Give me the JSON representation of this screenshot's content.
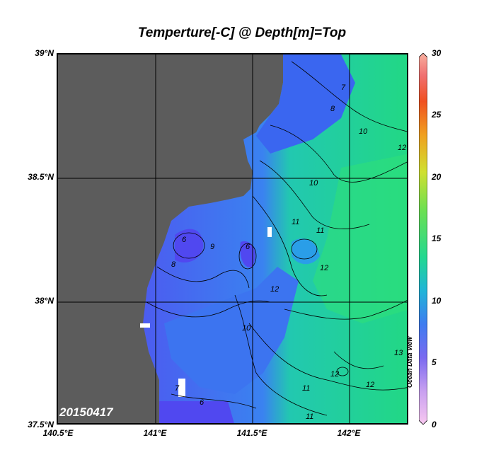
{
  "title": "Temperture[-C] @ Depth[m]=Top",
  "date_label": "20150417",
  "watermark": "Ocean Data View",
  "y_ticks": [
    "39°N",
    "38.5°N",
    "38°N",
    "37.5°N"
  ],
  "x_ticks": [
    "140.5°E",
    "141°E",
    "141.5°E",
    "142°E"
  ],
  "colorbar": {
    "ticks": [
      "30",
      "25",
      "20",
      "15",
      "10",
      "5",
      "0"
    ],
    "colors": [
      "#f8c8f0",
      "#c8a0f0",
      "#7a6af0",
      "#3e7cf0",
      "#20b4d8",
      "#22d890",
      "#6ee050",
      "#d0e030",
      "#f0a020",
      "#f05020",
      "#f07070",
      "#f8b0a0"
    ]
  },
  "contour_labels": [
    "6",
    "7",
    "8",
    "9",
    "10",
    "11",
    "12",
    "13"
  ],
  "colors": {
    "land": "#5c5c5c",
    "cold": "#4a62f0",
    "mid": "#2e8ff0",
    "warm": "#22d884"
  }
}
